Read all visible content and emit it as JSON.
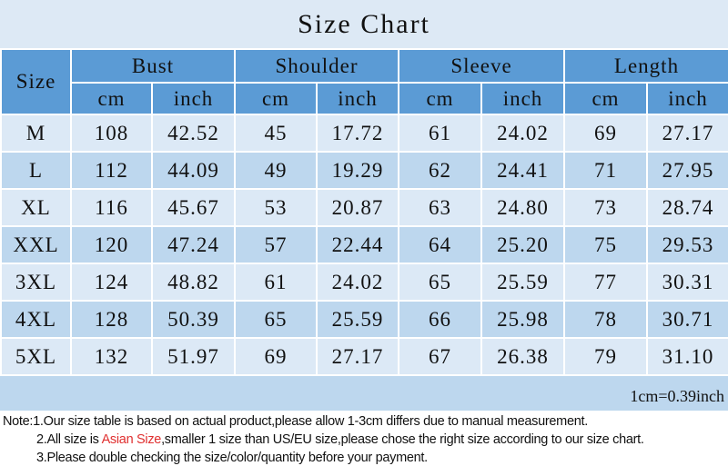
{
  "title": "Size Chart",
  "header": {
    "size": "Size",
    "groups": [
      "Bust",
      "Shoulder",
      "Sleeve",
      "Length"
    ],
    "units": [
      "cm",
      "inch"
    ]
  },
  "rows": [
    [
      "M",
      "108",
      "42.52",
      "45",
      "17.72",
      "61",
      "24.02",
      "69",
      "27.17"
    ],
    [
      "L",
      "112",
      "44.09",
      "49",
      "19.29",
      "62",
      "24.41",
      "71",
      "27.95"
    ],
    [
      "XL",
      "116",
      "45.67",
      "53",
      "20.87",
      "63",
      "24.80",
      "73",
      "28.74"
    ],
    [
      "XXL",
      "120",
      "47.24",
      "57",
      "22.44",
      "64",
      "25.20",
      "75",
      "29.53"
    ],
    [
      "3XL",
      "124",
      "48.82",
      "61",
      "24.02",
      "65",
      "25.59",
      "77",
      "30.31"
    ],
    [
      "4XL",
      "128",
      "50.39",
      "65",
      "25.59",
      "66",
      "25.98",
      "78",
      "30.71"
    ],
    [
      "5XL",
      "132",
      "51.97",
      "69",
      "27.17",
      "67",
      "26.38",
      "79",
      "31.10"
    ]
  ],
  "conversion": "1cm=0.39inch",
  "notes": {
    "note1": "Note:1.Our size table is based on actual product,please allow 1-3cm differs due to manual measurement.",
    "note2_pre": "2.All size is ",
    "note2_highlight": "Asian Size",
    "note2_post": ",smaller 1 size than US/EU size,please chose the right size according to our size chart.",
    "note3": "3.Please double checking the size/color/quantity before your payment."
  },
  "colors": {
    "header": "#5b9bd5",
    "row_light": "#dce9f6",
    "row_dark": "#bdd7ee",
    "highlight": "#e03030"
  }
}
